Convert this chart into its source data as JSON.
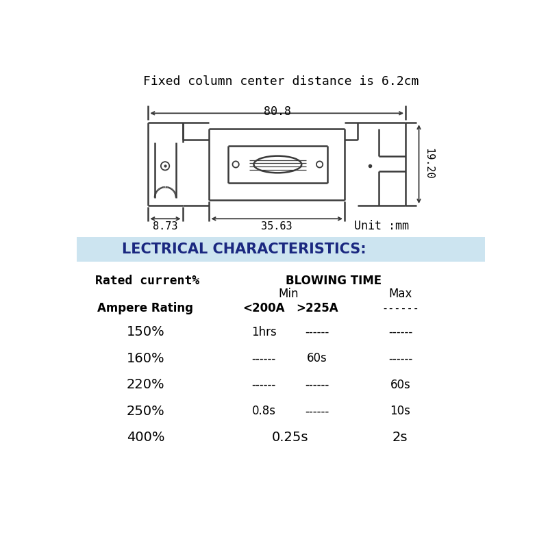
{
  "bg_color": "#ffffff",
  "title_text": "Fixed column center distance is 6.2cm",
  "dim_80_8": "80.8",
  "dim_19_20": "19.20",
  "dim_8_73": "8.73",
  "dim_35_63": "35.63",
  "unit_text": "Unit :mm",
  "elec_char_text": "LECTRICAL CHARACTERISTICS:",
  "elec_bg_color": "#cce4f0",
  "col1_header": "Rated current%",
  "col_blowing": "BLOWING TIME",
  "col_min": "Min",
  "col_max": "Max",
  "col_200": "<200A",
  "col_225": ">225A",
  "dash": "------",
  "rows": [
    [
      "Ampere Rating",
      "<200A",
      ">225A",
      "------"
    ],
    [
      "150%",
      "1hrs",
      "------",
      "------"
    ],
    [
      "160%",
      "------",
      "60s",
      "------"
    ],
    [
      "220%",
      "------",
      "------",
      "60s"
    ],
    [
      "250%",
      "0.8s",
      "------",
      "10s"
    ],
    [
      "400%",
      "0.25s",
      "2s"
    ]
  ],
  "lw": 1.8,
  "gray": "#3a3a3a"
}
